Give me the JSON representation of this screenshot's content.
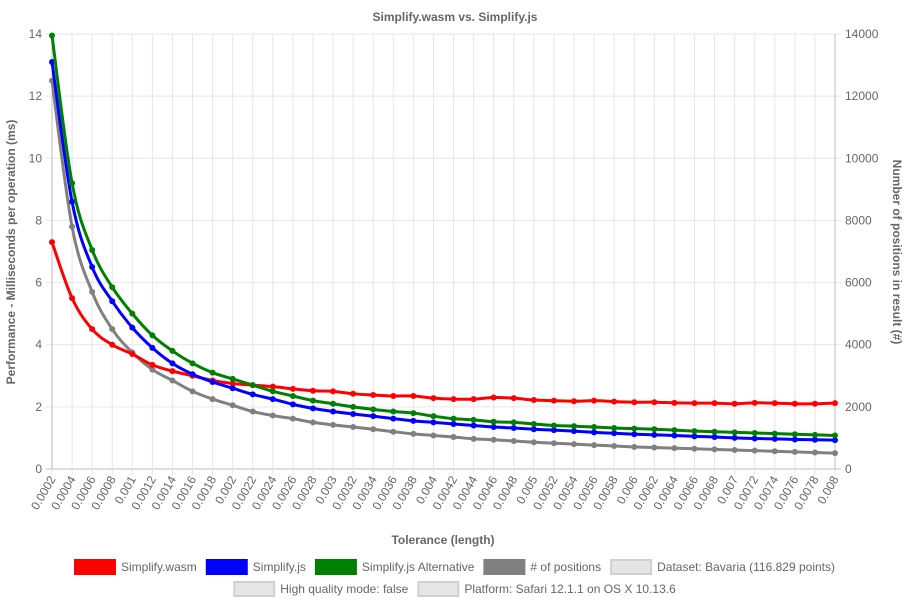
{
  "chart_data": {
    "type": "line",
    "title": "Simplify.wasm vs. Simplify.js",
    "xlabel": "Tolerance (length)",
    "ylabel_left": "Performance - Milliseconds per operation (ms)",
    "ylabel_right": "Number of positions in result (#)",
    "ylim_left": [
      0,
      14
    ],
    "ylim_right": [
      0,
      14000
    ],
    "yticks_left": [
      "0",
      "2",
      "4",
      "6",
      "8",
      "10",
      "12",
      "14"
    ],
    "yticks_right": [
      "0",
      "2000",
      "4000",
      "6000",
      "8000",
      "10000",
      "12000",
      "14000"
    ],
    "grid": true,
    "x": [
      "0.0002",
      "0.0004",
      "0.0006",
      "0.0008",
      "0.001",
      "0.0012",
      "0.0014",
      "0.0016",
      "0.0018",
      "0.002",
      "0.0022",
      "0.0024",
      "0.0026",
      "0.0028",
      "0.003",
      "0.0032",
      "0.0034",
      "0.0036",
      "0.0038",
      "0.004",
      "0.0042",
      "0.0044",
      "0.0046",
      "0.0048",
      "0.005",
      "0.0052",
      "0.0054",
      "0.0056",
      "0.0058",
      "0.006",
      "0.0062",
      "0.0064",
      "0.0066",
      "0.0068",
      "0.007",
      "0.0072",
      "0.0074",
      "0.0076",
      "0.0078",
      "0.008"
    ],
    "series": [
      {
        "name": "Simplify.wasm",
        "color": "#ff0000",
        "axis": "left",
        "values": [
          7.3,
          5.5,
          4.5,
          4.0,
          3.7,
          3.35,
          3.15,
          3.0,
          2.85,
          2.75,
          2.7,
          2.65,
          2.58,
          2.52,
          2.5,
          2.42,
          2.38,
          2.35,
          2.35,
          2.28,
          2.25,
          2.25,
          2.3,
          2.28,
          2.22,
          2.2,
          2.18,
          2.2,
          2.17,
          2.15,
          2.15,
          2.13,
          2.12,
          2.12,
          2.1,
          2.13,
          2.12,
          2.1,
          2.1,
          2.12
        ]
      },
      {
        "name": "Simplify.js",
        "color": "#0000ff",
        "axis": "left",
        "values": [
          13.1,
          8.6,
          6.5,
          5.4,
          4.55,
          3.9,
          3.4,
          3.05,
          2.8,
          2.6,
          2.4,
          2.25,
          2.08,
          1.95,
          1.85,
          1.77,
          1.7,
          1.62,
          1.55,
          1.5,
          1.45,
          1.4,
          1.35,
          1.32,
          1.28,
          1.25,
          1.22,
          1.18,
          1.15,
          1.12,
          1.1,
          1.08,
          1.05,
          1.03,
          1.0,
          0.98,
          0.97,
          0.95,
          0.94,
          0.93
        ]
      },
      {
        "name": "Simplify.js Alternative",
        "color": "#008000",
        "axis": "left",
        "values": [
          13.95,
          9.2,
          7.05,
          5.85,
          5.0,
          4.3,
          3.8,
          3.4,
          3.1,
          2.9,
          2.7,
          2.5,
          2.35,
          2.2,
          2.1,
          2.0,
          1.92,
          1.85,
          1.8,
          1.7,
          1.62,
          1.58,
          1.52,
          1.5,
          1.45,
          1.4,
          1.38,
          1.35,
          1.32,
          1.3,
          1.28,
          1.25,
          1.22,
          1.2,
          1.18,
          1.16,
          1.14,
          1.12,
          1.1,
          1.08
        ]
      },
      {
        "name": "# of positions",
        "color": "#808080",
        "axis": "right",
        "values": [
          12500,
          7800,
          5700,
          4500,
          3750,
          3200,
          2850,
          2500,
          2250,
          2050,
          1850,
          1720,
          1620,
          1500,
          1420,
          1350,
          1280,
          1200,
          1130,
          1080,
          1030,
          970,
          940,
          900,
          860,
          830,
          800,
          770,
          740,
          710,
          690,
          670,
          650,
          630,
          610,
          590,
          570,
          550,
          530,
          510
        ]
      }
    ]
  },
  "legend": {
    "items": [
      {
        "label": "Simplify.wasm",
        "color": "#ff0000"
      },
      {
        "label": "Simplify.js",
        "color": "#0000ff"
      },
      {
        "label": "Simplify.js Alternative",
        "color": "#008000"
      },
      {
        "label": "# of positions",
        "color": "#808080"
      },
      {
        "label": "Dataset: Bavaria (116.829 points)",
        "color": "#e5e5e5"
      },
      {
        "label": "High quality mode: false",
        "color": "#e5e5e5"
      },
      {
        "label": "Platform: Safari 12.1.1 on OS X 10.13.6",
        "color": "#e5e5e5"
      }
    ]
  }
}
